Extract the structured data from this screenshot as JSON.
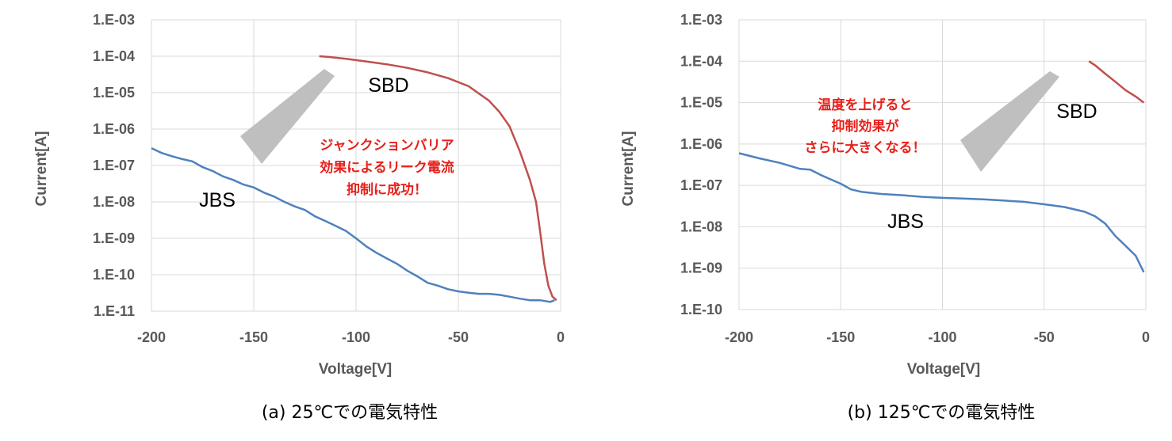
{
  "colors": {
    "sbd": "#c0504d",
    "jbs": "#4f81bd",
    "grid": "#d9d9d9",
    "note": "#e8201a",
    "arrow": "#bfbfbf"
  },
  "chart_data": [
    {
      "type": "line",
      "y_scale": "log",
      "xlabel": "Voltage[V]",
      "ylabel": "Current[A]",
      "xlim": [
        -200,
        0
      ],
      "ylim": [
        1e-11,
        0.001
      ],
      "x_ticks": [
        "-200",
        "-150",
        "-100",
        "-50",
        "0"
      ],
      "y_ticks": [
        "1.E-03",
        "1.E-04",
        "1.E-05",
        "1.E-06",
        "1.E-07",
        "1.E-08",
        "1.E-09",
        "1.E-10",
        "1.E-11"
      ],
      "grid": true,
      "series_labels": {
        "sbd": "SBD",
        "jbs": "JBS"
      },
      "annotation": [
        "ジャンクションバリア",
        "効果によるリーク電流",
        "抑制に成功！"
      ],
      "caption": "(a)  25℃での電気特性",
      "series": [
        {
          "name": "SBD",
          "x": [
            -118,
            -113,
            -105,
            -95,
            -85,
            -75,
            -65,
            -55,
            -45,
            -35,
            -30,
            -25,
            -20,
            -15,
            -12,
            -10,
            -8,
            -6,
            -4,
            -2
          ],
          "y": [
            0.0001,
            9.5e-05,
            8.5e-05,
            7.2e-05,
            6e-05,
            4.8e-05,
            3.6e-05,
            2.5e-05,
            1.5e-05,
            6e-06,
            3e-06,
            1.2e-06,
            2.5e-07,
            4e-08,
            1e-08,
            1.5e-09,
            2e-10,
            5e-11,
            2.5e-11,
            2e-11
          ]
        },
        {
          "name": "JBS",
          "x": [
            -200,
            -195,
            -190,
            -185,
            -180,
            -175,
            -170,
            -165,
            -160,
            -155,
            -150,
            -145,
            -140,
            -135,
            -130,
            -125,
            -120,
            -115,
            -110,
            -105,
            -100,
            -95,
            -90,
            -85,
            -80,
            -75,
            -70,
            -65,
            -60,
            -55,
            -50,
            -45,
            -40,
            -35,
            -30,
            -25,
            -20,
            -15,
            -10,
            -5,
            -3
          ],
          "y": [
            3e-07,
            2.2e-07,
            1.8e-07,
            1.5e-07,
            1.3e-07,
            9e-08,
            7e-08,
            5e-08,
            4e-08,
            3e-08,
            2.5e-08,
            1.8e-08,
            1.4e-08,
            1e-08,
            7.5e-09,
            6e-09,
            4e-09,
            3e-09,
            2.2e-09,
            1.6e-09,
            1e-09,
            6e-10,
            4e-10,
            2.8e-10,
            2e-10,
            1.3e-10,
            9e-11,
            6e-11,
            5e-11,
            4e-11,
            3.5e-11,
            3.2e-11,
            3e-11,
            3e-11,
            2.8e-11,
            2.5e-11,
            2.2e-11,
            2e-11,
            2e-11,
            1.8e-11,
            2e-11
          ]
        }
      ]
    },
    {
      "type": "line",
      "y_scale": "log",
      "xlabel": "Voltage[V]",
      "ylabel": "Current[A]",
      "xlim": [
        -200,
        0
      ],
      "ylim": [
        1e-10,
        0.001
      ],
      "x_ticks": [
        "-200",
        "-150",
        "-100",
        "-50",
        "0"
      ],
      "y_ticks": [
        "1.E-03",
        "1.E-04",
        "1.E-05",
        "1.E-06",
        "1.E-07",
        "1.E-08",
        "1.E-09",
        "1.E-10"
      ],
      "grid": true,
      "series_labels": {
        "sbd": "SBD",
        "jbs": "JBS"
      },
      "annotation": [
        "温度を上げると",
        "抑制効果が",
        "さらに大きくなる！"
      ],
      "caption": "(b)  125℃での電気特性",
      "series": [
        {
          "name": "SBD",
          "x": [
            -28,
            -25,
            -20,
            -15,
            -10,
            -5,
            -1
          ],
          "y": [
            0.0001,
            8e-05,
            5e-05,
            3.2e-05,
            2e-05,
            1.4e-05,
            1e-05
          ]
        },
        {
          "name": "JBS",
          "x": [
            -200,
            -190,
            -180,
            -170,
            -165,
            -160,
            -155,
            -150,
            -145,
            -140,
            -130,
            -120,
            -110,
            -100,
            -90,
            -80,
            -70,
            -60,
            -50,
            -40,
            -30,
            -25,
            -20,
            -15,
            -10,
            -5,
            -1
          ],
          "y": [
            6e-07,
            4.5e-07,
            3.5e-07,
            2.5e-07,
            2.4e-07,
            1.8e-07,
            1.4e-07,
            1.1e-07,
            8e-08,
            7e-08,
            6.2e-08,
            5.8e-08,
            5.3e-08,
            5e-08,
            4.8e-08,
            4.6e-08,
            4.3e-08,
            4e-08,
            3.5e-08,
            3e-08,
            2.3e-08,
            1.8e-08,
            1.2e-08,
            6e-09,
            3.5e-09,
            2e-09,
            8e-10
          ]
        }
      ]
    }
  ]
}
